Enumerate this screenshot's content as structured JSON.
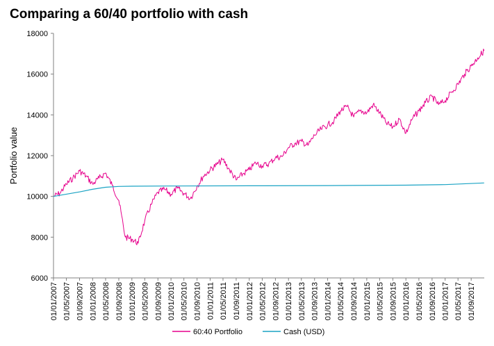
{
  "chart_data": {
    "type": "line",
    "title": "Comparing a 60/40 portfolio with cash",
    "xlabel": "",
    "ylabel": "Portfolio value",
    "ylim": [
      6000,
      18000
    ],
    "y_ticks": [
      "6000",
      "8000",
      "10000",
      "12000",
      "14000",
      "16000",
      "18000"
    ],
    "x_ticks": [
      "01/01/2007",
      "01/05/2007",
      "01/09/2007",
      "01/01/2008",
      "01/05/2008",
      "01/09/2008",
      "01/01/2009",
      "01/05/2009",
      "01/09/2009",
      "01/01/2010",
      "01/05/2010",
      "01/09/2010",
      "01/01/2011",
      "01/05/2011",
      "01/09/2011",
      "01/01/2012",
      "01/05/2012",
      "01/09/2012",
      "01/01/2013",
      "01/05/2013",
      "01/09/2013",
      "01/01/2014",
      "01/05/2014",
      "01/09/2014",
      "01/01/2015",
      "01/05/2015",
      "01/09/2015",
      "01/01/2016",
      "01/05/2016",
      "01/09/2016",
      "01/01/2017",
      "01/05/2017",
      "01/09/2017"
    ],
    "x_range": [
      "01/01/2007",
      "01/01/2018"
    ],
    "grid": false,
    "legend_position": "bottom",
    "series": [
      {
        "name": "60:40 Portfolio",
        "color": "#E6008C",
        "x": [
          "01/01/2007",
          "01/03/2007",
          "01/05/2007",
          "01/07/2007",
          "01/09/2007",
          "01/11/2007",
          "01/01/2008",
          "01/03/2008",
          "01/05/2008",
          "01/07/2008",
          "01/09/2008",
          "01/11/2008",
          "01/01/2009",
          "01/03/2009",
          "01/05/2009",
          "01/07/2009",
          "01/09/2009",
          "01/11/2009",
          "01/01/2010",
          "01/03/2010",
          "01/05/2010",
          "01/07/2010",
          "01/09/2010",
          "01/11/2010",
          "01/01/2011",
          "01/03/2011",
          "01/05/2011",
          "01/07/2011",
          "01/09/2011",
          "01/11/2011",
          "01/01/2012",
          "01/03/2012",
          "01/05/2012",
          "01/07/2012",
          "01/09/2012",
          "01/11/2012",
          "01/01/2013",
          "01/03/2013",
          "01/05/2013",
          "01/07/2013",
          "01/09/2013",
          "01/11/2013",
          "01/01/2014",
          "01/03/2014",
          "01/05/2014",
          "01/07/2014",
          "01/09/2014",
          "01/11/2014",
          "01/01/2015",
          "01/03/2015",
          "01/05/2015",
          "01/07/2015",
          "01/09/2015",
          "01/11/2015",
          "01/01/2016",
          "01/03/2016",
          "01/05/2016",
          "01/07/2016",
          "01/09/2016",
          "01/11/2016",
          "01/01/2017",
          "01/03/2017",
          "01/05/2017",
          "01/07/2017",
          "01/09/2017",
          "01/11/2017",
          "31/12/2017"
        ],
        "values": [
          10000,
          10150,
          10600,
          10900,
          11250,
          11000,
          10600,
          10900,
          11150,
          10550,
          9800,
          8000,
          7900,
          7700,
          8800,
          9600,
          10200,
          10350,
          10100,
          10400,
          10150,
          9900,
          10500,
          11000,
          11300,
          11550,
          11800,
          11300,
          10800,
          11100,
          11300,
          11650,
          11500,
          11600,
          11900,
          11950,
          12400,
          12600,
          12700,
          12500,
          13000,
          13300,
          13500,
          13700,
          14200,
          14400,
          13900,
          14200,
          14100,
          14500,
          14100,
          13600,
          13400,
          13800,
          13100,
          13800,
          14200,
          14600,
          14900,
          14500,
          14700,
          15100,
          15500,
          16000,
          16400,
          16800,
          17150
        ]
      },
      {
        "name": "Cash (USD)",
        "color": "#1AA3C4",
        "x": [
          "01/01/2007",
          "01/09/2007",
          "01/01/2008",
          "01/05/2008",
          "01/09/2008",
          "01/01/2009",
          "01/01/2010",
          "01/01/2012",
          "01/01/2014",
          "01/01/2016",
          "01/01/2017",
          "31/12/2017"
        ],
        "values": [
          10000,
          10220,
          10350,
          10450,
          10490,
          10500,
          10510,
          10520,
          10530,
          10550,
          10580,
          10660
        ]
      }
    ]
  }
}
